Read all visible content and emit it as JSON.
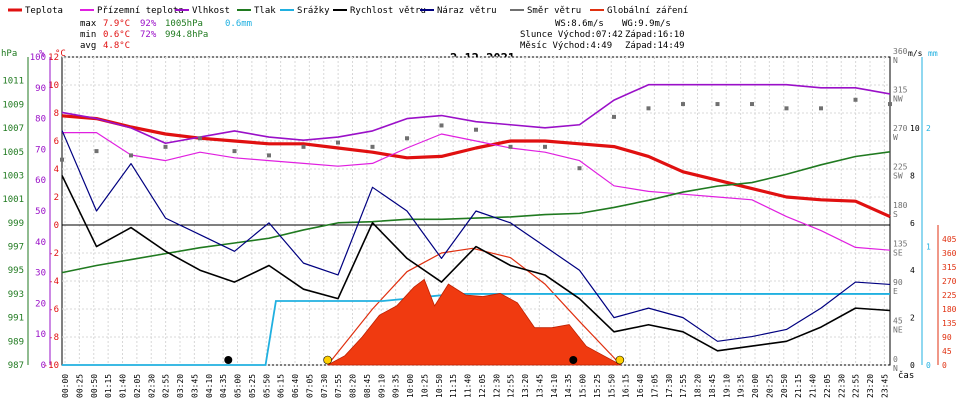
{
  "legend": [
    {
      "label": "Teplota",
      "color": "#e01010"
    },
    {
      "label": "Přízemní teplota",
      "color": "#e020e0"
    },
    {
      "label": "Vlhkost",
      "color": "#9a10c8"
    },
    {
      "label": "Tlak",
      "color": "#207a20"
    },
    {
      "label": "Srážky",
      "color": "#20b0e0"
    },
    {
      "label": "Rychlost větru",
      "color": "#000000"
    },
    {
      "label": "Náraz větru",
      "color": "#000080"
    },
    {
      "label": "Směr větru",
      "color": "#707070"
    },
    {
      "label": "Globální záření",
      "color": "#e03010"
    }
  ],
  "stats": {
    "max_label": "max",
    "min_label": "min",
    "avg_label": "avg",
    "max_temp": "7.9°C",
    "max_hum": "92%",
    "max_press": "1005hPa",
    "max_rain": "0.6mm",
    "min_temp": "0.6°C",
    "min_hum": "72%",
    "min_press": "994.8hPa",
    "avg_temp": "4.8°C"
  },
  "astro": {
    "ws": "WS:8.6m/s",
    "wg": "WG:9.9m/s",
    "sun": "Slunce Východ:07:42",
    "sun_set": "Západ:16:10",
    "moon": "Měsíc Východ:4:49",
    "moon_set": "Západ:14:49"
  },
  "chart_data": {
    "type": "line",
    "title": "2.12.2021",
    "xlabel": "čas",
    "x_ticks": [
      "00:00",
      "00:25",
      "00:50",
      "01:15",
      "01:40",
      "02:05",
      "02:30",
      "02:55",
      "03:20",
      "03:45",
      "04:10",
      "04:35",
      "05:00",
      "05:25",
      "05:50",
      "06:15",
      "06:40",
      "07:05",
      "07:30",
      "07:55",
      "08:20",
      "08:45",
      "09:10",
      "09:35",
      "10:00",
      "10:25",
      "10:50",
      "11:15",
      "11:40",
      "12:05",
      "12:30",
      "12:55",
      "13:20",
      "13:45",
      "14:10",
      "14:35",
      "15:00",
      "15:25",
      "15:50",
      "16:15",
      "16:40",
      "17:05",
      "17:30",
      "17:55",
      "18:20",
      "18:45",
      "19:10",
      "19:35",
      "20:00",
      "20:25",
      "20:50",
      "21:15",
      "21:40",
      "22:05",
      "22:30",
      "22:55",
      "23:20",
      "23:45"
    ],
    "axes": {
      "hpa": {
        "unit": "hPa",
        "ticks": [
          "987",
          "989",
          "991",
          "993",
          "995",
          "997",
          "999",
          "1001",
          "1003",
          "1005",
          "1007",
          "1009",
          "1011"
        ],
        "range": [
          987,
          1013
        ]
      },
      "pct": {
        "unit": "%",
        "ticks": [
          "0",
          "10",
          "20",
          "30",
          "40",
          "50",
          "60",
          "70",
          "80",
          "90",
          "100"
        ],
        "range": [
          0,
          100
        ]
      },
      "temp": {
        "unit": "°C",
        "ticks": [
          "-10",
          "-8",
          "-6",
          "-4",
          "-2",
          "0",
          "2",
          "4",
          "6",
          "8",
          "10",
          "12"
        ],
        "range": [
          -10,
          12
        ]
      },
      "dir": {
        "ticks": [
          "0 N",
          "45 NE",
          "90 E",
          "135 SE",
          "180 S",
          "225 SW",
          "270 W",
          "315 NW",
          "360 N"
        ]
      },
      "wind": {
        "unit": "m/s",
        "ticks": [
          "0",
          "2",
          "4",
          "6",
          "8",
          "10"
        ],
        "range": [
          0,
          13
        ]
      },
      "mm": {
        "unit": "mm",
        "ticks": [
          "0",
          "1",
          "2"
        ],
        "range": [
          0,
          2.6
        ]
      },
      "rad": {
        "ticks": [
          "0",
          "45",
          "90",
          "135",
          "180",
          "225",
          "270",
          "315",
          "360",
          "405"
        ],
        "range": [
          0,
          450
        ]
      }
    },
    "series": [
      {
        "name": "Teplota",
        "unit": "°C",
        "x": [
          0,
          1,
          2,
          3,
          4,
          5,
          6,
          7,
          8,
          9,
          10,
          11,
          12,
          13,
          14,
          15,
          16,
          17,
          18,
          19,
          20,
          21,
          22,
          23,
          24
        ],
        "values": [
          7.8,
          7.6,
          7.0,
          6.5,
          6.2,
          6.0,
          5.8,
          5.8,
          5.5,
          5.2,
          4.8,
          4.9,
          5.5,
          6.0,
          6.0,
          5.8,
          5.6,
          4.9,
          3.8,
          3.2,
          2.6,
          2.0,
          1.8,
          1.7,
          0.6
        ]
      },
      {
        "name": "Přízemní teplota",
        "unit": "°C",
        "x": [
          0,
          1,
          2,
          3,
          4,
          5,
          6,
          7,
          8,
          9,
          10,
          11,
          12,
          13,
          14,
          15,
          16,
          17,
          18,
          19,
          20,
          21,
          22,
          23,
          24
        ],
        "values": [
          6.6,
          6.6,
          5.0,
          4.6,
          5.2,
          4.8,
          4.6,
          4.4,
          4.2,
          4.4,
          5.5,
          6.5,
          6.0,
          5.5,
          5.2,
          4.6,
          2.8,
          2.4,
          2.2,
          2.0,
          1.8,
          0.6,
          -0.4,
          -1.6,
          -1.8
        ]
      },
      {
        "name": "Vlhkost",
        "unit": "%",
        "x": [
          0,
          1,
          2,
          3,
          4,
          5,
          6,
          7,
          8,
          9,
          10,
          11,
          12,
          13,
          14,
          15,
          16,
          17,
          18,
          19,
          20,
          21,
          22,
          23,
          24
        ],
        "values": [
          82,
          80,
          77,
          72,
          74,
          76,
          74,
          73,
          74,
          76,
          80,
          81,
          79,
          78,
          77,
          78,
          86,
          91,
          91,
          91,
          91,
          91,
          90,
          90,
          88
        ]
      },
      {
        "name": "Tlak",
        "unit": "hPa",
        "x": [
          0,
          1,
          2,
          3,
          4,
          5,
          6,
          7,
          8,
          9,
          10,
          11,
          12,
          13,
          14,
          15,
          16,
          17,
          18,
          19,
          20,
          21,
          22,
          23,
          24
        ],
        "values": [
          994.8,
          995.4,
          995.9,
          996.4,
          996.9,
          997.3,
          997.7,
          998.4,
          999.0,
          999.1,
          999.3,
          999.3,
          999.4,
          999.5,
          999.7,
          999.8,
          1000.3,
          1000.9,
          1001.6,
          1002.1,
          1002.4,
          1003.1,
          1003.9,
          1004.6,
          1005.0
        ]
      },
      {
        "name": "Srážky",
        "unit": "mm",
        "x": [
          0,
          5.9,
          6.2,
          9.3,
          11.4,
          24
        ],
        "values": [
          0,
          0,
          0.54,
          0.54,
          0.6,
          0.6
        ]
      },
      {
        "name": "Rychlost větru",
        "unit": "m/s",
        "x": [
          0,
          1,
          2,
          3,
          4,
          5,
          6,
          7,
          8,
          9,
          10,
          11,
          12,
          13,
          14,
          15,
          16,
          17,
          18,
          19,
          20,
          21,
          22,
          23,
          24
        ],
        "values": [
          8.0,
          5.0,
          5.8,
          4.8,
          4.0,
          3.5,
          4.2,
          3.2,
          2.8,
          6.0,
          4.5,
          3.5,
          5.0,
          4.2,
          3.8,
          2.8,
          1.4,
          1.7,
          1.4,
          0.6,
          0.8,
          1.0,
          1.6,
          2.4,
          2.3
        ]
      },
      {
        "name": "Náraz větru",
        "unit": "m/s",
        "x": [
          0,
          1,
          2,
          3,
          4,
          5,
          6,
          7,
          8,
          9,
          10,
          11,
          12,
          13,
          14,
          15,
          16,
          17,
          18,
          19,
          20,
          21,
          22,
          23,
          24
        ],
        "values": [
          9.9,
          6.5,
          8.5,
          6.2,
          5.5,
          4.8,
          6.0,
          4.3,
          3.8,
          7.5,
          6.5,
          4.5,
          6.5,
          6.0,
          5.0,
          4.0,
          2.0,
          2.4,
          2.0,
          1.0,
          1.2,
          1.5,
          2.4,
          3.5,
          3.4
        ]
      },
      {
        "name": "Globální záření",
        "unit": "W/m²",
        "x": [
          7.7,
          8.2,
          8.7,
          9.2,
          9.7,
          10.2,
          10.5,
          10.8,
          11.2,
          11.7,
          12.2,
          12.7,
          13.2,
          13.7,
          14.2,
          14.7,
          15.2,
          15.7,
          16.2
        ],
        "values": [
          0,
          30,
          90,
          160,
          190,
          250,
          275,
          190,
          260,
          225,
          220,
          230,
          200,
          120,
          120,
          130,
          60,
          30,
          0
        ]
      },
      {
        "name": "Směr větru",
        "unit": "°",
        "x": [
          0,
          1,
          2,
          3,
          4,
          5,
          6,
          7,
          8,
          9,
          10,
          11,
          12,
          13,
          14,
          15,
          16,
          17,
          18,
          19,
          20,
          21,
          22,
          23,
          24
        ],
        "values": [
          240,
          250,
          245,
          255,
          265,
          250,
          245,
          255,
          260,
          255,
          265,
          280,
          275,
          255,
          255,
          230,
          290,
          300,
          305,
          305,
          305,
          300,
          300,
          310,
          305
        ]
      }
    ],
    "theoretical_radiation": {
      "name": "Globální záření (teor.)",
      "x": [
        7.7,
        9,
        10,
        11,
        11.9,
        13,
        14,
        15,
        16.2
      ],
      "values": [
        0,
        180,
        300,
        360,
        375,
        345,
        260,
        140,
        0
      ]
    },
    "grid": true
  }
}
